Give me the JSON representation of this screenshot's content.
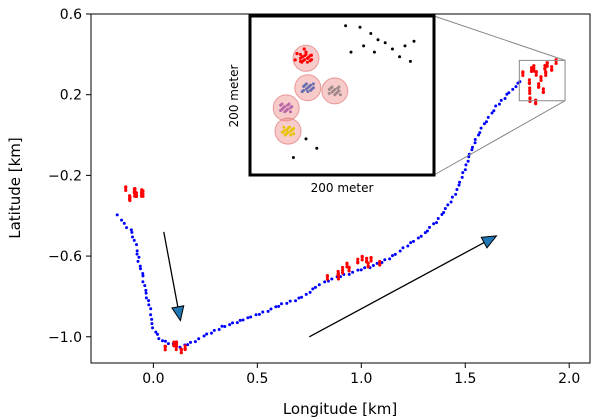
{
  "chart_data": {
    "type": "scatter",
    "title": "",
    "xlabel": "Longitude [km]",
    "ylabel": "Latitude [km]",
    "xlim": [
      -0.3,
      2.1
    ],
    "ylim": [
      -1.13,
      0.6
    ],
    "xticks": [
      {
        "value": 0.0,
        "label": "0.0"
      },
      {
        "value": 0.5,
        "label": "0.5"
      },
      {
        "value": 1.0,
        "label": "1.0"
      },
      {
        "value": 1.5,
        "label": "1.5"
      },
      {
        "value": 2.0,
        "label": "2.0"
      }
    ],
    "yticks": [
      {
        "value": 0.6,
        "label": "0.6"
      },
      {
        "value": 0.2,
        "label": "0.2"
      },
      {
        "value": -0.2,
        "label": "−0.2"
      },
      {
        "value": -0.6,
        "label": "−0.6"
      },
      {
        "value": -1.0,
        "label": "−1.0"
      }
    ],
    "colors": {
      "moving": "#0000ff",
      "stay": "#ff0000",
      "arrow": "#1f77b4"
    },
    "moving_track": [
      [
        -0.17,
        -0.4
      ],
      [
        -0.14,
        -0.44
      ],
      [
        -0.11,
        -0.47
      ],
      [
        -0.09,
        -0.52
      ],
      [
        -0.08,
        -0.57
      ],
      [
        -0.07,
        -0.63
      ],
      [
        -0.05,
        -0.7
      ],
      [
        -0.04,
        -0.77
      ],
      [
        -0.02,
        -0.84
      ],
      [
        -0.01,
        -0.91
      ],
      [
        0.0,
        -0.96
      ],
      [
        0.02,
        -0.99
      ],
      [
        0.04,
        -1.02
      ],
      [
        0.13,
        -1.05
      ],
      [
        0.2,
        -1.02
      ],
      [
        0.26,
        -0.99
      ],
      [
        0.33,
        -0.95
      ],
      [
        0.4,
        -0.93
      ],
      [
        0.47,
        -0.9
      ],
      [
        0.55,
        -0.87
      ],
      [
        0.62,
        -0.84
      ],
      [
        0.7,
        -0.81
      ],
      [
        0.75,
        -0.78
      ],
      [
        0.8,
        -0.74
      ],
      [
        0.84,
        -0.72
      ],
      [
        1.08,
        -0.64
      ],
      [
        1.15,
        -0.6
      ],
      [
        1.22,
        -0.55
      ],
      [
        1.29,
        -0.5
      ],
      [
        1.36,
        -0.43
      ],
      [
        1.42,
        -0.35
      ],
      [
        1.47,
        -0.25
      ],
      [
        1.51,
        -0.13
      ],
      [
        1.55,
        -0.02
      ],
      [
        1.6,
        0.07
      ],
      [
        1.65,
        0.14
      ],
      [
        1.7,
        0.2
      ],
      [
        1.74,
        0.24
      ],
      [
        1.78,
        0.28
      ]
    ],
    "stay_points": [
      {
        "name": "stay-1",
        "points": [
          [
            -0.12,
            -0.27
          ],
          [
            -0.1,
            -0.28
          ],
          [
            -0.09,
            -0.29
          ],
          [
            -0.08,
            -0.27
          ],
          [
            -0.07,
            -0.29
          ],
          [
            -0.06,
            -0.28
          ],
          [
            -0.11,
            -0.31
          ],
          [
            -0.1,
            -0.32
          ],
          [
            -0.09,
            -0.3
          ],
          [
            -0.05,
            -0.29
          ]
        ]
      },
      {
        "name": "stay-2",
        "points": [
          [
            0.07,
            -1.06
          ],
          [
            0.09,
            -1.04
          ],
          [
            0.11,
            -1.05
          ],
          [
            0.12,
            -1.03
          ],
          [
            0.14,
            -1.05
          ],
          [
            0.13,
            -1.07
          ]
        ]
      },
      {
        "name": "stay-3",
        "points": [
          [
            0.85,
            -0.71
          ],
          [
            0.88,
            -0.69
          ],
          [
            0.91,
            -0.67
          ],
          [
            0.94,
            -0.64
          ],
          [
            0.97,
            -0.62
          ],
          [
            1.0,
            -0.61
          ],
          [
            1.03,
            -0.62
          ],
          [
            1.06,
            -0.62
          ],
          [
            1.08,
            -0.64
          ],
          [
            0.89,
            -0.7
          ],
          [
            0.95,
            -0.66
          ],
          [
            1.02,
            -0.64
          ]
        ]
      },
      {
        "name": "stay-4",
        "points": [
          [
            1.79,
            0.3
          ],
          [
            1.81,
            0.32
          ],
          [
            1.83,
            0.33
          ],
          [
            1.85,
            0.31
          ],
          [
            1.87,
            0.34
          ],
          [
            1.89,
            0.35
          ],
          [
            1.92,
            0.33
          ],
          [
            1.95,
            0.36
          ],
          [
            1.8,
            0.26
          ],
          [
            1.81,
            0.22
          ],
          [
            1.82,
            0.18
          ],
          [
            1.84,
            0.25
          ],
          [
            1.86,
            0.28
          ],
          [
            1.88,
            0.22
          ],
          [
            1.9,
            0.3
          ],
          [
            1.83,
            0.16
          ]
        ]
      }
    ],
    "zoom_box": {
      "x": [
        1.76,
        1.98
      ],
      "y": [
        0.17,
        0.37
      ]
    },
    "arrows": [
      {
        "name": "arrow-down",
        "from": [
          0.05,
          -0.48
        ],
        "to": [
          0.13,
          -0.92
        ]
      },
      {
        "name": "arrow-up-right",
        "from": [
          0.75,
          -1.0
        ],
        "to": [
          1.65,
          -0.5
        ]
      }
    ],
    "inset": {
      "x_label": "200 meter",
      "y_label": "200 meter",
      "black_points": [
        [
          0.52,
          0.05
        ],
        [
          0.6,
          0.06
        ],
        [
          0.66,
          0.1
        ],
        [
          0.7,
          0.14
        ],
        [
          0.74,
          0.16
        ],
        [
          0.78,
          0.2
        ],
        [
          0.82,
          0.25
        ],
        [
          0.85,
          0.18
        ],
        [
          0.88,
          0.28
        ],
        [
          0.62,
          0.18
        ],
        [
          0.55,
          0.22
        ],
        [
          0.9,
          0.15
        ],
        [
          0.68,
          0.22
        ],
        [
          0.3,
          0.78
        ],
        [
          0.36,
          0.84
        ],
        [
          0.23,
          0.9
        ]
      ],
      "red_cluster": [
        [
          0.25,
          0.23
        ],
        [
          0.28,
          0.25
        ],
        [
          0.31,
          0.26
        ],
        [
          0.27,
          0.28
        ],
        [
          0.3,
          0.22
        ],
        [
          0.33,
          0.24
        ],
        [
          0.24,
          0.27
        ],
        [
          0.29,
          0.2
        ]
      ],
      "stay_circles": [
        {
          "center": [
            0.3,
            0.26
          ],
          "color": "#ff0000"
        },
        {
          "center": [
            0.31,
            0.45
          ],
          "color": "#6a6fb0"
        },
        {
          "center": [
            0.46,
            0.47
          ],
          "color": "#a08a8a"
        },
        {
          "center": [
            0.19,
            0.58
          ],
          "color": "#b868a8"
        },
        {
          "center": [
            0.2,
            0.73
          ],
          "color": "#e8c400"
        }
      ]
    }
  }
}
